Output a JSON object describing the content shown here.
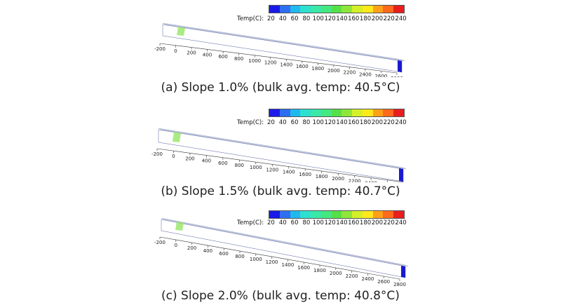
{
  "legend": {
    "title": "Temp(C):",
    "ticks": [
      "20",
      "40",
      "60",
      "80",
      "100",
      "120",
      "140",
      "160",
      "180",
      "200",
      "220",
      "240"
    ],
    "colors": [
      "#1a1ae8",
      "#2e6ff2",
      "#21b8f0",
      "#2ee0d0",
      "#3ae8a8",
      "#44e880",
      "#55e04a",
      "#8ee63a",
      "#d4f028",
      "#ffe81c",
      "#ffa01a",
      "#ff6a1c",
      "#e81e1e"
    ]
  },
  "axis_ticks": [
    "-200",
    "0",
    "200",
    "400",
    "600",
    "800",
    "1000",
    "1200",
    "1400",
    "1600",
    "1800",
    "2000",
    "2200",
    "2400",
    "2600",
    "2800"
  ],
  "panels": [
    {
      "caption": "(a) Slope 1.0% (bulk avg. temp: 40.5°C)"
    },
    {
      "caption": "(b) Slope 1.5% (bulk avg. temp: 40.7°C)"
    },
    {
      "caption": "(c) Slope 2.0% (bulk avg. temp: 40.8°C)"
    }
  ]
}
